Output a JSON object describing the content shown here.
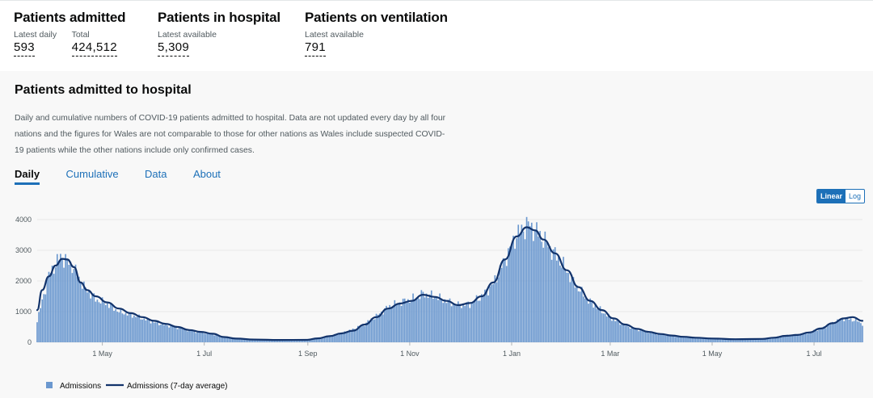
{
  "headlines": [
    {
      "title": "Patients admitted",
      "metrics": [
        {
          "label": "Latest daily",
          "value": "593"
        },
        {
          "label": "Total",
          "value": "424,512"
        }
      ]
    },
    {
      "title": "Patients in hospital",
      "metrics": [
        {
          "label": "Latest available",
          "value": "5,309"
        }
      ]
    },
    {
      "title": "Patients on ventilation",
      "metrics": [
        {
          "label": "Latest available",
          "value": "791"
        }
      ]
    }
  ],
  "card": {
    "title": "Patients admitted to hospital",
    "description": "Daily and cumulative numbers of COVID-19 patients admitted to hospital. Data are not updated every day by all four nations and the figures for Wales are not comparable to those for other nations as Wales include suspected COVID-19 patients while the other nations include only confirmed cases.",
    "tabs": [
      "Daily",
      "Cumulative",
      "Data",
      "About"
    ],
    "active_tab": "Daily",
    "scale": {
      "linear": "Linear",
      "log": "Log",
      "selected": "Linear"
    }
  },
  "colors": {
    "bar": "#6b98cf",
    "line": "#12336b",
    "accent": "#1d70b8",
    "grid": "#e8e8e8"
  },
  "chart_data": {
    "type": "bar",
    "ylim": [
      0,
      4000
    ],
    "yticks": [
      0,
      1000,
      2000,
      3000,
      4000
    ],
    "x_start": "2020-03-23",
    "x_end": "2021-07-30",
    "xticks": [
      {
        "date": "2020-05-01",
        "label": "1 May"
      },
      {
        "date": "2020-07-01",
        "label": "1 Jul"
      },
      {
        "date": "2020-09-01",
        "label": "1 Sep"
      },
      {
        "date": "2020-11-01",
        "label": "1 Nov"
      },
      {
        "date": "2021-01-01",
        "label": "1 Jan"
      },
      {
        "date": "2021-03-01",
        "label": "1 Mar"
      },
      {
        "date": "2021-05-01",
        "label": "1 May"
      },
      {
        "date": "2021-07-01",
        "label": "1 Jul"
      }
    ],
    "series": [
      {
        "name": "Admissions",
        "kind": "bar",
        "weekly_points": [
          [
            "2020-03-23",
            700
          ],
          [
            "2020-03-30",
            2200
          ],
          [
            "2020-04-06",
            2800
          ],
          [
            "2020-04-13",
            2500
          ],
          [
            "2020-04-20",
            1800
          ],
          [
            "2020-04-27",
            1400
          ],
          [
            "2020-05-04",
            1250
          ],
          [
            "2020-05-11",
            1000
          ],
          [
            "2020-05-18",
            900
          ],
          [
            "2020-05-25",
            780
          ],
          [
            "2020-06-01",
            650
          ],
          [
            "2020-06-08",
            560
          ],
          [
            "2020-06-15",
            480
          ],
          [
            "2020-06-22",
            380
          ],
          [
            "2020-06-29",
            320
          ],
          [
            "2020-07-06",
            270
          ],
          [
            "2020-07-13",
            150
          ],
          [
            "2020-07-20",
            110
          ],
          [
            "2020-07-27",
            90
          ],
          [
            "2020-08-03",
            80
          ],
          [
            "2020-08-10",
            75
          ],
          [
            "2020-08-17",
            75
          ],
          [
            "2020-08-24",
            80
          ],
          [
            "2020-08-31",
            90
          ],
          [
            "2020-09-07",
            140
          ],
          [
            "2020-09-14",
            210
          ],
          [
            "2020-09-21",
            300
          ],
          [
            "2020-09-28",
            420
          ],
          [
            "2020-10-05",
            600
          ],
          [
            "2020-10-12",
            850
          ],
          [
            "2020-10-19",
            1150
          ],
          [
            "2020-10-26",
            1300
          ],
          [
            "2020-11-02",
            1400
          ],
          [
            "2020-11-09",
            1580
          ],
          [
            "2020-11-16",
            1500
          ],
          [
            "2020-11-23",
            1350
          ],
          [
            "2020-11-30",
            1200
          ],
          [
            "2020-12-07",
            1250
          ],
          [
            "2020-12-14",
            1500
          ],
          [
            "2020-12-21",
            1900
          ],
          [
            "2020-12-28",
            2700
          ],
          [
            "2021-01-04",
            3500
          ],
          [
            "2021-01-11",
            3850
          ],
          [
            "2021-01-18",
            3500
          ],
          [
            "2021-01-25",
            3000
          ],
          [
            "2021-02-01",
            2500
          ],
          [
            "2021-02-08",
            1900
          ],
          [
            "2021-02-15",
            1400
          ],
          [
            "2021-02-22",
            1100
          ],
          [
            "2021-03-01",
            800
          ],
          [
            "2021-03-08",
            600
          ],
          [
            "2021-03-15",
            450
          ],
          [
            "2021-03-22",
            350
          ],
          [
            "2021-03-29",
            270
          ],
          [
            "2021-04-05",
            220
          ],
          [
            "2021-04-12",
            180
          ],
          [
            "2021-04-19",
            150
          ],
          [
            "2021-04-26",
            130
          ],
          [
            "2021-05-03",
            115
          ],
          [
            "2021-05-10",
            105
          ],
          [
            "2021-05-17",
            100
          ],
          [
            "2021-05-24",
            100
          ],
          [
            "2021-05-31",
            120
          ],
          [
            "2021-06-07",
            160
          ],
          [
            "2021-06-14",
            220
          ],
          [
            "2021-06-21",
            250
          ],
          [
            "2021-06-28",
            320
          ],
          [
            "2021-07-05",
            450
          ],
          [
            "2021-07-12",
            620
          ],
          [
            "2021-07-19",
            780
          ],
          [
            "2021-07-26",
            720
          ],
          [
            "2021-07-30",
            600
          ]
        ]
      },
      {
        "name": "Admissions (7-day average)",
        "kind": "line",
        "points": [
          [
            "2020-03-23",
            1050
          ],
          [
            "2020-03-26",
            1700
          ],
          [
            "2020-03-30",
            2150
          ],
          [
            "2020-04-03",
            2500
          ],
          [
            "2020-04-07",
            2720
          ],
          [
            "2020-04-10",
            2700
          ],
          [
            "2020-04-14",
            2450
          ],
          [
            "2020-04-18",
            1950
          ],
          [
            "2020-04-22",
            1700
          ],
          [
            "2020-04-27",
            1500
          ],
          [
            "2020-05-04",
            1300
          ],
          [
            "2020-05-11",
            1100
          ],
          [
            "2020-05-18",
            950
          ],
          [
            "2020-05-25",
            820
          ],
          [
            "2020-06-01",
            700
          ],
          [
            "2020-06-08",
            600
          ],
          [
            "2020-06-15",
            500
          ],
          [
            "2020-06-22",
            400
          ],
          [
            "2020-06-29",
            340
          ],
          [
            "2020-07-06",
            280
          ],
          [
            "2020-07-13",
            170
          ],
          [
            "2020-07-20",
            120
          ],
          [
            "2020-07-31",
            90
          ],
          [
            "2020-08-15",
            75
          ],
          [
            "2020-08-31",
            80
          ],
          [
            "2020-09-07",
            130
          ],
          [
            "2020-09-14",
            200
          ],
          [
            "2020-09-21",
            290
          ],
          [
            "2020-09-28",
            380
          ],
          [
            "2020-10-05",
            580
          ],
          [
            "2020-10-12",
            820
          ],
          [
            "2020-10-19",
            1100
          ],
          [
            "2020-10-26",
            1260
          ],
          [
            "2020-11-02",
            1350
          ],
          [
            "2020-11-09",
            1550
          ],
          [
            "2020-11-16",
            1480
          ],
          [
            "2020-11-23",
            1350
          ],
          [
            "2020-11-30",
            1210
          ],
          [
            "2020-12-07",
            1280
          ],
          [
            "2020-12-14",
            1500
          ],
          [
            "2020-12-21",
            1950
          ],
          [
            "2020-12-28",
            2700
          ],
          [
            "2021-01-04",
            3450
          ],
          [
            "2021-01-10",
            3750
          ],
          [
            "2021-01-15",
            3650
          ],
          [
            "2021-01-20",
            3350
          ],
          [
            "2021-01-27",
            2900
          ],
          [
            "2021-02-03",
            2350
          ],
          [
            "2021-02-10",
            1800
          ],
          [
            "2021-02-17",
            1350
          ],
          [
            "2021-02-24",
            1050
          ],
          [
            "2021-03-03",
            780
          ],
          [
            "2021-03-10",
            580
          ],
          [
            "2021-03-17",
            440
          ],
          [
            "2021-03-24",
            340
          ],
          [
            "2021-03-31",
            270
          ],
          [
            "2021-04-07",
            220
          ],
          [
            "2021-04-14",
            180
          ],
          [
            "2021-04-21",
            150
          ],
          [
            "2021-05-01",
            125
          ],
          [
            "2021-05-15",
            100
          ],
          [
            "2021-05-31",
            110
          ],
          [
            "2021-06-07",
            150
          ],
          [
            "2021-06-14",
            210
          ],
          [
            "2021-06-21",
            240
          ],
          [
            "2021-06-28",
            320
          ],
          [
            "2021-07-05",
            450
          ],
          [
            "2021-07-12",
            620
          ],
          [
            "2021-07-19",
            780
          ],
          [
            "2021-07-24",
            820
          ],
          [
            "2021-07-30",
            700
          ]
        ]
      }
    ],
    "legend": [
      "Admissions",
      "Admissions (7-day average)"
    ],
    "legend_position": "bottom-left",
    "grid": true
  }
}
